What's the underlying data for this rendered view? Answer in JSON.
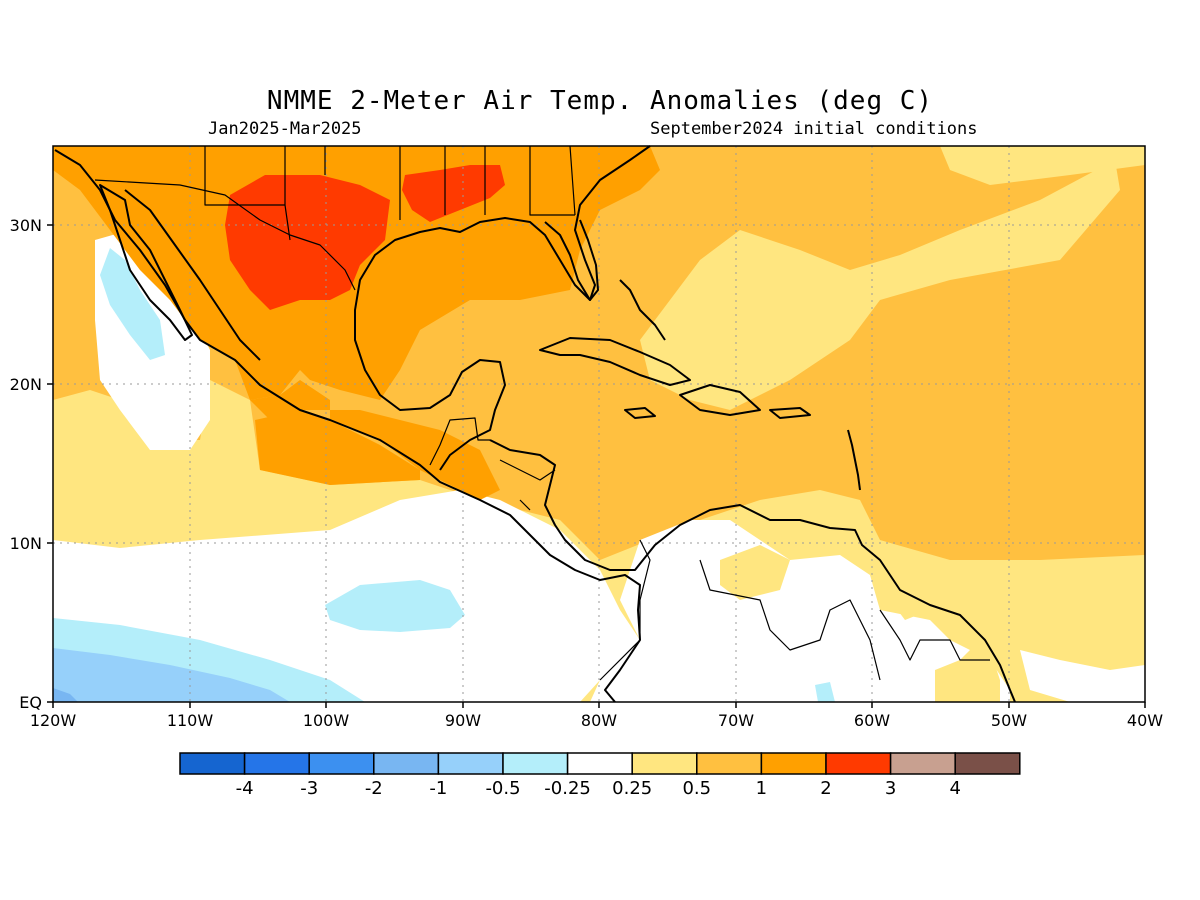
{
  "title": "NMME 2-Meter Air Temp. Anomalies (deg C)",
  "period": "Jan2025-Mar2025",
  "initial_conditions": "September2024 initial conditions",
  "longitude_labels": [
    "120W",
    "110W",
    "100W",
    "90W",
    "80W",
    "70W",
    "60W",
    "50W",
    "40W"
  ],
  "latitude_labels": [
    "30N",
    "20N",
    "10N",
    "EQ"
  ],
  "colorbar": {
    "labels": [
      "-4",
      "-3",
      "-2",
      "-1",
      "-0.5",
      "-0.25",
      "0.25",
      "0.5",
      "1",
      "2",
      "3",
      "4"
    ],
    "colors": [
      "#1565d0",
      "#2575e8",
      "#3c90f0",
      "#78b6f2",
      "#96d0fa",
      "#b4eefa",
      "#ffffff",
      "#ffe680",
      "#ffc040",
      "#ffa000",
      "#ff3a00",
      "#c8a090",
      "#7a5048"
    ]
  },
  "colors": {
    "weak_warm": "#ffe680",
    "moderate_warm": "#ffc040",
    "warm": "#ffa000",
    "strong_warm": "#ff3a00",
    "weak_cool": "#b4eefa",
    "moderate_cool": "#96d0fa",
    "coastline": "#000000",
    "grid": "#999999"
  }
}
